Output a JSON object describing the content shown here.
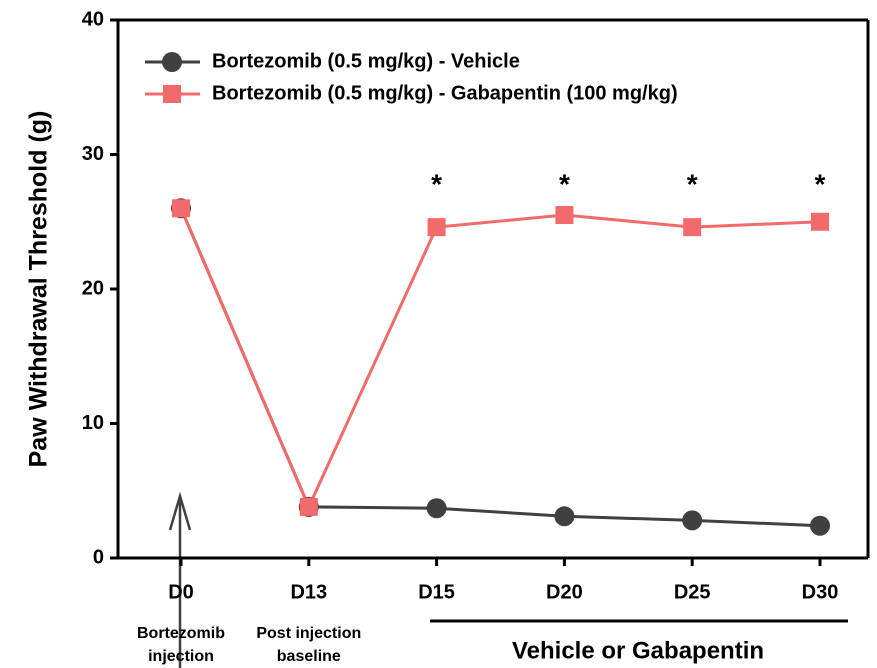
{
  "chart_data": {
    "type": "line",
    "ylabel": "Paw Withdrawal Threshold (g)",
    "categories": [
      "D0",
      "D13",
      "D15",
      "D20",
      "D25",
      "D30"
    ],
    "series": [
      {
        "name": "Bortezomib (0.5 mg/kg) - Vehicle",
        "color": "#404040",
        "marker": "circle",
        "values": [
          26,
          3.8,
          3.7,
          3.1,
          2.8,
          2.4
        ]
      },
      {
        "name": "Bortezomib (0.5 mg/kg) - Gabapentin (100 mg/kg)",
        "color": "#f26a6a",
        "marker": "square",
        "values": [
          26,
          3.8,
          24.6,
          25.5,
          24.6,
          25.0
        ]
      }
    ],
    "ylim": [
      0,
      40
    ],
    "yticks": [
      0,
      10,
      20,
      30,
      40
    ],
    "grid": false,
    "legend": "upper left",
    "annotations": [
      {
        "text": "*",
        "category": "D15"
      },
      {
        "text": "*",
        "category": "D20"
      },
      {
        "text": "*",
        "category": "D25"
      },
      {
        "text": "*",
        "category": "D30"
      }
    ],
    "phase_labels": [
      {
        "category": "D0",
        "lines": [
          "Bortezomib",
          "injection"
        ]
      },
      {
        "category": "D13",
        "lines": [
          "Post injection",
          "baseline"
        ]
      }
    ],
    "treatment_label": "Vehicle or Gabapentin"
  }
}
